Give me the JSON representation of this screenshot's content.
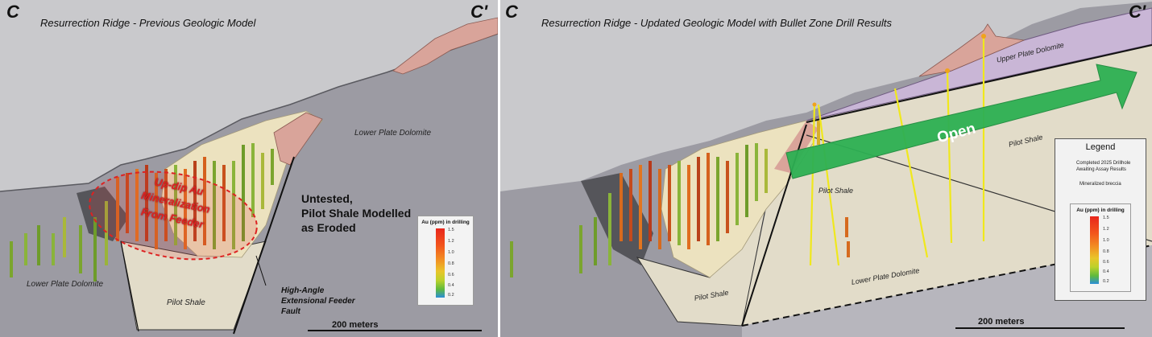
{
  "left_panel": {
    "corner_left": "C",
    "corner_right": "C'",
    "title": "Resurrection Ridge - Previous Geologic Model",
    "unit_lower_plate_dolomite_upper": "Lower Plate Dolomite",
    "unit_lower_plate_dolomite_lower": "Lower Plate Dolomite",
    "unit_pilot_shale": "Pilot Shale",
    "callout_lines": [
      "Up-dip Au",
      "Mineralization",
      "From Feeder"
    ],
    "untested_lines": [
      "Untested,",
      "Pilot Shale Modelled",
      "as Eroded"
    ],
    "fault_lines": [
      "High-Angle",
      "Extensional Feeder",
      "Fault"
    ],
    "scale_label": "200 meters",
    "au_scale": {
      "title": "Au (ppm) in drilling",
      "ticks": [
        "1.5",
        "1.2",
        "1.0",
        "0.8",
        "0.6",
        "0.4",
        "0.2"
      ]
    }
  },
  "right_panel": {
    "corner_left": "C",
    "corner_right": "C'",
    "title": "Resurrection Ridge - Updated Geologic Model with Bullet Zone Drill Results",
    "unit_upper_plate_dolomite": "Upper Plate Dolomite",
    "unit_pilot_shale_right": "Pilot Shale",
    "unit_pilot_shale_mid": "Pilot Shale",
    "unit_pilot_shale_bottom": "Pilot Shale",
    "unit_lower_plate_dolomite": "Lower Plate Dolomite",
    "open_label": "Open",
    "scale_label": "200 meters",
    "legend": {
      "title": "Legend",
      "item_drillhole_line1": "Completed 2025 Drillhole",
      "item_drillhole_line2": "Awaiting Assay Results",
      "item_breccia": "Mineralized breccia"
    },
    "au_scale": {
      "title": "Au (ppm) in drilling",
      "ticks": [
        "1.5",
        "1.2",
        "1.0",
        "0.8",
        "0.6",
        "0.4",
        "0.2"
      ]
    }
  },
  "colors": {
    "sky": "#c9c9cc",
    "dolomite_gray": "#9c9ba3",
    "pilot_shale": "#e2dcc9",
    "upper_plate_dolomite": "#c9b6d6",
    "breccia_cream": "#ece2bf",
    "pink_unit": "#d9a49a",
    "open_arrow": "#2db053",
    "completed_drillhole": "#f0e81c",
    "callout_red": "#dd2222"
  }
}
